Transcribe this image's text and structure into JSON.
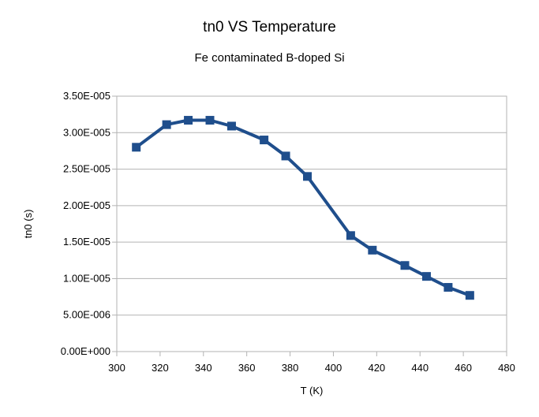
{
  "chart_data": {
    "type": "line",
    "title": "tn0 VS Temperature",
    "subtitle": "Fe contaminated B-doped Si",
    "xlabel": "T (K)",
    "ylabel": "tn0 (s)",
    "xlim": [
      300,
      480
    ],
    "ylim": [
      0,
      3.5e-05
    ],
    "x_ticks": [
      "300",
      "320",
      "340",
      "360",
      "380",
      "400",
      "420",
      "440",
      "460",
      "480"
    ],
    "x_tick_values": [
      300,
      320,
      340,
      360,
      380,
      400,
      420,
      440,
      460,
      480
    ],
    "y_ticks": [
      "0.00E+000",
      "5.00E-006",
      "1.00E-005",
      "1.50E-005",
      "2.00E-005",
      "2.50E-005",
      "3.00E-005",
      "3.50E-005"
    ],
    "y_tick_values": [
      0,
      5e-06,
      1e-05,
      1.5e-05,
      2e-05,
      2.5e-05,
      3e-05,
      3.5e-05
    ],
    "grid": "horizontal",
    "legend": "none",
    "series": [
      {
        "color": "#1f4e8c",
        "marker": "square",
        "x": [
          309,
          323,
          333,
          343,
          353,
          368,
          378,
          388,
          408,
          418,
          433,
          443,
          453,
          463
        ],
        "y": [
          2.8e-05,
          3.11e-05,
          3.17e-05,
          3.17e-05,
          3.09e-05,
          2.9e-05,
          2.68e-05,
          2.4e-05,
          1.59e-05,
          1.39e-05,
          1.18e-05,
          1.03e-05,
          8.8e-06,
          7.7e-06
        ]
      }
    ]
  }
}
